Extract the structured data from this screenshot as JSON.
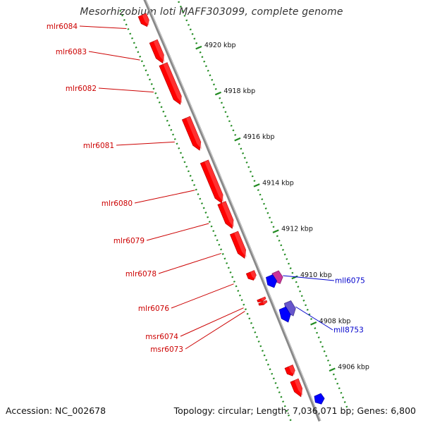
{
  "title": "Mesorhizobium loti MAFF303099, complete genome",
  "footer": {
    "accession": "Accession: NC_002678",
    "summary": "Topology: circular; Length: 7,036,071 bp; Genes: 6,800"
  },
  "colors": {
    "forward_gene": "#ff0000",
    "reverse_gene": "#0000ff",
    "forward_label": "#cc0000",
    "reverse_label": "#0000cc",
    "backbone": "#888888",
    "ticks": "#228b22"
  },
  "scale": {
    "unit": "kbp",
    "ticks": [
      {
        "label": "4906 kbp",
        "pos": 4906
      },
      {
        "label": "4908 kbp",
        "pos": 4908
      },
      {
        "label": "4910 kbp",
        "pos": 4910
      },
      {
        "label": "4912 kbp",
        "pos": 4912
      },
      {
        "label": "4914 kbp",
        "pos": 4914
      },
      {
        "label": "4916 kbp",
        "pos": 4916
      },
      {
        "label": "4918 kbp",
        "pos": 4918
      },
      {
        "label": "4920 kbp",
        "pos": 4920
      }
    ]
  },
  "genes": {
    "forward_labeled": [
      {
        "label": "mlr6084",
        "start": 4921.6,
        "end": 4922.1
      },
      {
        "label": "mlr6083",
        "start": 4920.0,
        "end": 4920.95
      },
      {
        "label": "mlr6082",
        "start": 4918.2,
        "end": 4919.95
      },
      {
        "label": "mlr6081",
        "start": 4916.2,
        "end": 4917.6
      },
      {
        "label": "mlr6080",
        "start": 4913.9,
        "end": 4915.7
      },
      {
        "label": "mlr6079",
        "start": 4912.8,
        "end": 4913.9
      },
      {
        "label": "mlr6078",
        "start": 4911.5,
        "end": 4912.6
      },
      {
        "label": "mlr6076",
        "start": 4910.55,
        "end": 4910.9
      },
      {
        "label": "msr6074",
        "start": 4909.62,
        "end": 4909.75
      },
      {
        "label": "msr6073",
        "start": 4909.48,
        "end": 4909.6
      }
    ],
    "forward_unlabeled": [
      {
        "start": 4906.4,
        "end": 4906.8
      },
      {
        "start": 4905.5,
        "end": 4906.2
      }
    ],
    "reverse": [
      {
        "label": "mll6075",
        "start": 4910.0,
        "end": 4910.5,
        "color": "#cc3399"
      },
      {
        "label": "",
        "start": 4909.95,
        "end": 4910.45,
        "color": "#0000ff"
      },
      {
        "label": "mll8753",
        "start": 4908.6,
        "end": 4909.2,
        "color": "#6655cc"
      },
      {
        "label": "",
        "start": 4908.45,
        "end": 4909.05,
        "color": "#0000ff"
      },
      {
        "label": "",
        "start": 4904.9,
        "end": 4905.3,
        "color": "#0000ff"
      }
    ]
  }
}
